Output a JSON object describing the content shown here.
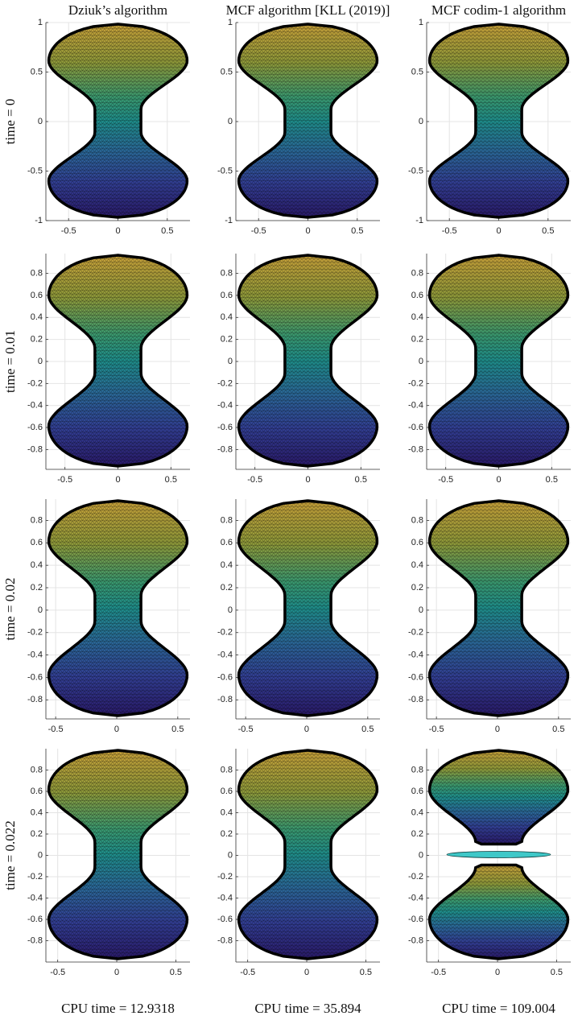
{
  "column_titles": [
    "Dziuk’s algorithm",
    "MCF algorithm [KLL (2019)]",
    "MCF codim-1 algorithm"
  ],
  "rows": [
    {
      "label": "time = 0",
      "xlim": [
        -0.73,
        0.73
      ],
      "ylim": [
        -1,
        1
      ],
      "xticks": [
        -0.5,
        0,
        0.5
      ],
      "yticks": [
        -1,
        -0.5,
        0,
        0.5,
        1
      ]
    },
    {
      "label": "time = 0.01",
      "xlim": [
        -0.68,
        0.68
      ],
      "ylim": [
        -0.98,
        0.98
      ],
      "xticks": [
        -0.5,
        0,
        0.5
      ],
      "yticks": [
        -0.8,
        -0.6,
        -0.4,
        -0.2,
        0,
        0.2,
        0.4,
        0.6,
        0.8
      ]
    },
    {
      "label": "time = 0.02",
      "xlim": [
        -0.58,
        0.6
      ],
      "ylim": [
        -0.97,
        0.99
      ],
      "xticks": [
        -0.5,
        0,
        0.5
      ],
      "yticks": [
        -0.8,
        -0.6,
        -0.4,
        -0.2,
        0,
        0.2,
        0.4,
        0.6,
        0.8
      ]
    },
    {
      "label": "time = 0.022",
      "xlim": [
        -0.6,
        0.62
      ],
      "ylim": [
        -1,
        1
      ],
      "xticks": [
        -0.5,
        0,
        0.5
      ],
      "yticks": [
        -0.8,
        -0.6,
        -0.4,
        -0.2,
        0,
        0.2,
        0.4,
        0.6,
        0.8
      ]
    }
  ],
  "cpu_times": [
    "CPU time = 12.9318",
    "CPU time = 35.894",
    "CPU time = 109.004"
  ]
}
